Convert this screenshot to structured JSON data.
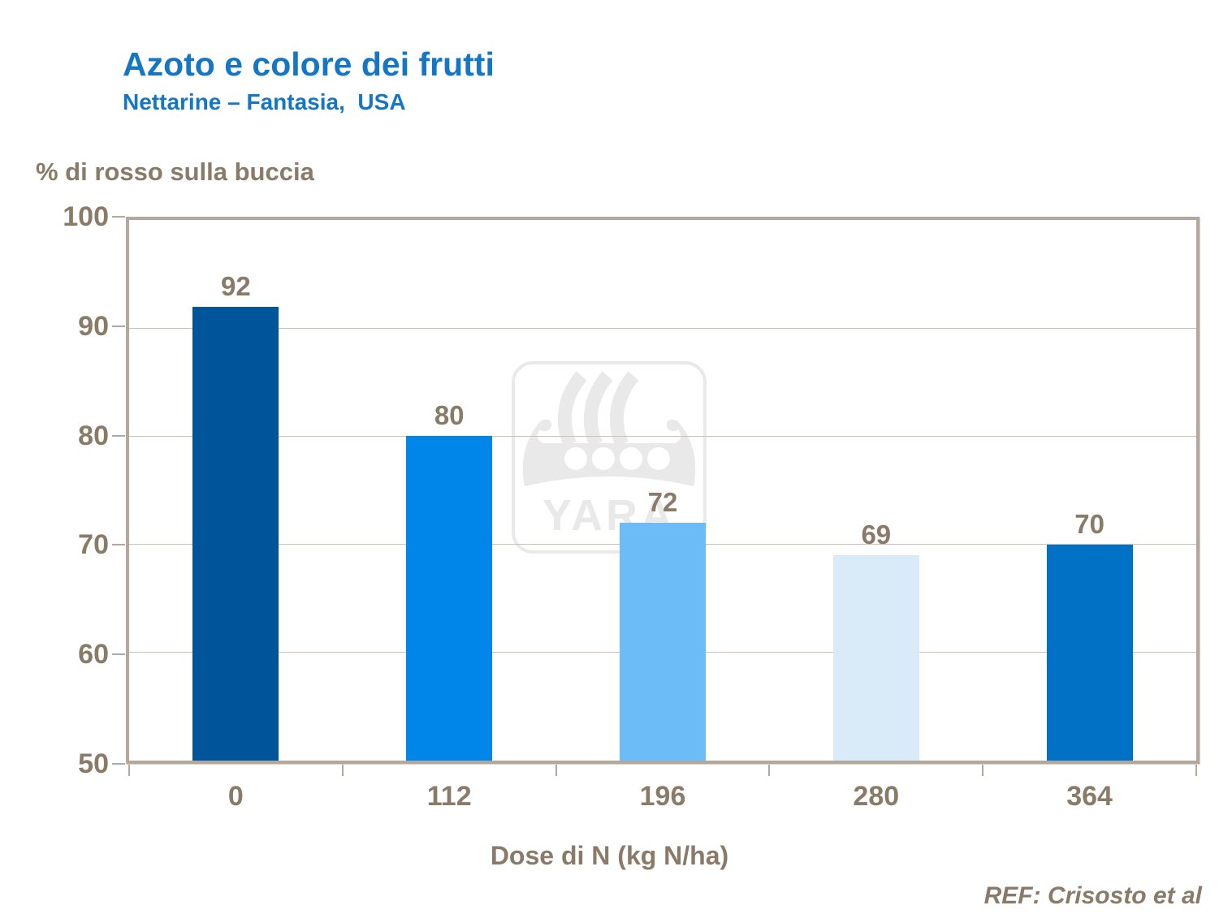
{
  "header": {
    "title": "Azoto e colore dei frutti",
    "subtitle": "Nettarine – Fantasia,  USA"
  },
  "chart_data": {
    "type": "bar",
    "title": "Azoto e colore dei frutti",
    "subtitle": "Nettarine – Fantasia, USA",
    "ylabel": "% di rosso sulla buccia",
    "xlabel": "Dose di N (kg N/ha)",
    "categories": [
      "0",
      "112",
      "196",
      "280",
      "364"
    ],
    "values": [
      92,
      80,
      72,
      69,
      70
    ],
    "bar_colors": [
      "#005499",
      "#0086E8",
      "#6CBDF7",
      "#D9EAF9",
      "#0071C4"
    ],
    "ylim": [
      50,
      100
    ],
    "yticks": [
      100,
      90,
      80,
      70,
      60,
      50
    ],
    "grid": true,
    "legend": "none",
    "value_labels": true
  },
  "watermark": {
    "name": "yara-viking-ship-logo",
    "text": "YARA"
  },
  "footer": {
    "ref": "REF: Crisosto et al"
  },
  "colors": {
    "title_blue": "#1377C6",
    "label_brown": "#8A7A68",
    "axis_frame": "#B3A89B",
    "gridline": "#C9C1B6",
    "watermark_gray": "#E9E9E9"
  }
}
